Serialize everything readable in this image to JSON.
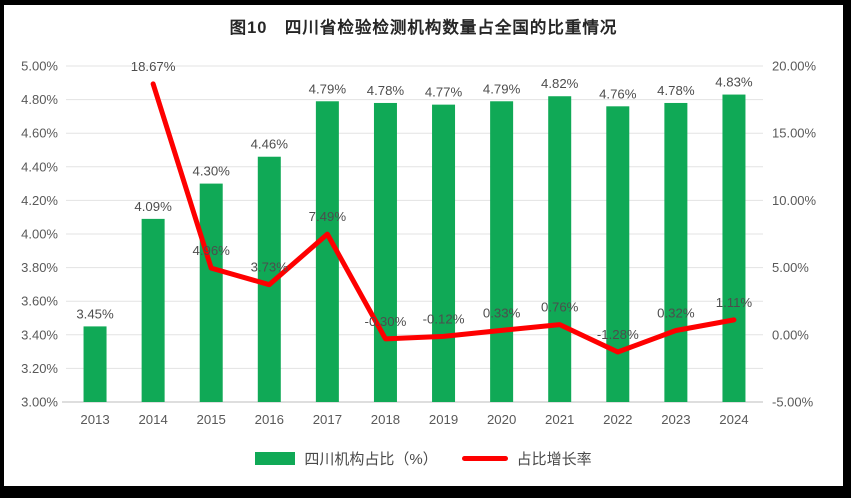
{
  "chart_data": {
    "type": "bar+line",
    "title": "图10　四川省检验检测机构数量占全国的比重情况",
    "categories": [
      "2013",
      "2014",
      "2015",
      "2016",
      "2017",
      "2018",
      "2019",
      "2020",
      "2021",
      "2022",
      "2023",
      "2024"
    ],
    "series": [
      {
        "name": "四川机构占比（%）",
        "type": "bar",
        "axis": "left",
        "values": [
          3.45,
          4.09,
          4.3,
          4.46,
          4.79,
          4.78,
          4.77,
          4.79,
          4.82,
          4.76,
          4.78,
          4.83
        ],
        "labels": [
          "3.45%",
          "4.09%",
          "4.30%",
          "4.46%",
          "4.79%",
          "4.78%",
          "4.77%",
          "4.79%",
          "4.82%",
          "4.76%",
          "4.78%",
          "4.83%"
        ]
      },
      {
        "name": "占比增长率",
        "type": "line",
        "axis": "right",
        "values": [
          null,
          18.67,
          4.96,
          3.73,
          7.49,
          -0.3,
          -0.12,
          0.33,
          0.76,
          -1.28,
          0.32,
          1.11
        ],
        "labels": [
          null,
          "18.67%",
          "4.96%",
          "3.73%",
          "7.49%",
          "-0.30%",
          "-0.12%",
          "0.33%",
          "0.76%",
          "-1.28%",
          "0.32%",
          "1.11%"
        ]
      }
    ],
    "left_axis": {
      "min": 3.0,
      "max": 5.0,
      "tick_step": 0.2,
      "ticks": [
        "5.00%",
        "4.80%",
        "4.60%",
        "4.40%",
        "4.20%",
        "4.00%",
        "3.80%",
        "3.60%",
        "3.40%",
        "3.20%",
        "3.00%"
      ]
    },
    "right_axis": {
      "min": -5.0,
      "max": 20.0,
      "tick_step": 5.0,
      "ticks": [
        "20.00%",
        "15.00%",
        "10.00%",
        "5.00%",
        "0.00%",
        "-5.00%"
      ]
    },
    "grid": true,
    "legend_position": "bottom"
  },
  "colors": {
    "bar": "#10A956",
    "line": "#FE0000",
    "grid": "#E3E3E3",
    "axis_line": "#C9C9C9",
    "axis_text": "#595959",
    "label_text": "#4d4d4d",
    "title_text": "#262626",
    "frame": "#000000",
    "background": "#FFFFFF"
  }
}
